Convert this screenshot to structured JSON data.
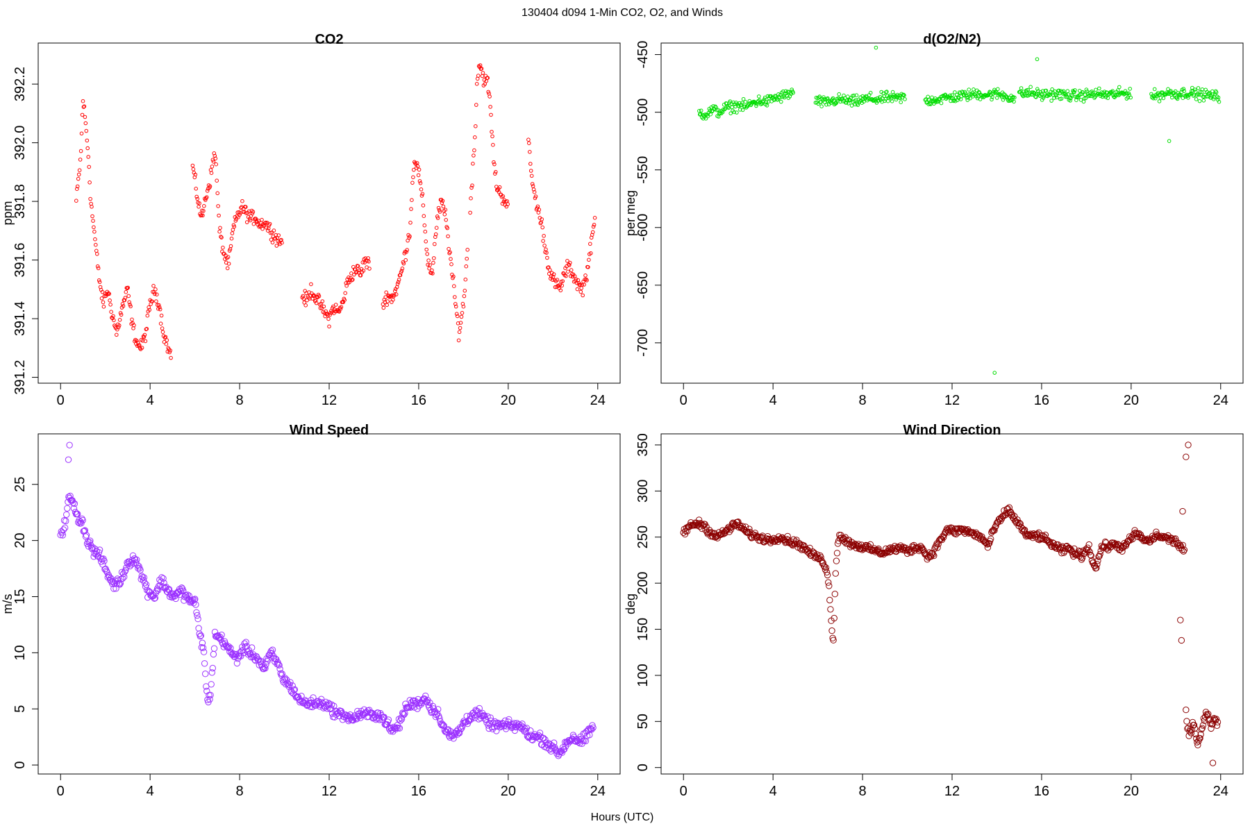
{
  "figure": {
    "suptitle": "130404   d094   1-Min CO2, O2, and Winds",
    "xlabel": "Hours (UTC)"
  },
  "chart_data": [
    {
      "type": "scatter",
      "title": "CO2",
      "xlabel": "",
      "ylabel": "ppm",
      "xlim": [
        -1,
        25
      ],
      "ylim": [
        391.18,
        392.34
      ],
      "xticks": [
        0,
        4,
        8,
        12,
        16,
        20,
        24
      ],
      "yticks": [
        391.2,
        391.4,
        391.6,
        391.8,
        392.0,
        392.2
      ],
      "ytick_labels": [
        "391.2",
        "391.4",
        "391.6",
        "391.8",
        "392.0",
        "392.2"
      ],
      "color": "#ff0000",
      "grid": false,
      "segments": [
        {
          "x": [
            0.7,
            0.9,
            1.0,
            1.1,
            1.25,
            1.35,
            1.5,
            1.7,
            1.9,
            2.1,
            2.3,
            2.5,
            2.8,
            3.0,
            3.2,
            3.4,
            3.6,
            3.8,
            4.0,
            4.2,
            4.4,
            4.6,
            4.8,
            4.95
          ],
          "y": [
            391.8,
            391.95,
            392.15,
            392.08,
            391.95,
            391.8,
            391.7,
            391.55,
            391.45,
            391.5,
            391.42,
            391.35,
            391.45,
            391.5,
            391.38,
            391.32,
            391.3,
            391.35,
            391.45,
            391.5,
            391.45,
            391.35,
            391.3,
            391.27
          ]
        },
        {
          "x": [
            5.9,
            6.1,
            6.3,
            6.5,
            6.7,
            6.9,
            7.1,
            7.3,
            7.5,
            7.7,
            7.9,
            8.1,
            8.3,
            8.5,
            8.7,
            8.9,
            9.1,
            9.3,
            9.5,
            9.7,
            9.9
          ],
          "y": [
            391.92,
            391.82,
            391.74,
            391.82,
            391.88,
            391.98,
            391.7,
            391.62,
            391.58,
            391.7,
            391.75,
            391.78,
            391.76,
            391.74,
            391.75,
            391.72,
            391.73,
            391.71,
            391.69,
            391.67,
            391.66
          ]
        },
        {
          "x": [
            10.8,
            11.0,
            11.2,
            11.4,
            11.6,
            11.8,
            12.0,
            12.2,
            12.4,
            12.6,
            12.8,
            13.0,
            13.2,
            13.4,
            13.6,
            13.8
          ],
          "y": [
            391.48,
            391.46,
            391.5,
            391.47,
            391.45,
            391.42,
            391.4,
            391.44,
            391.42,
            391.45,
            391.52,
            391.55,
            391.57,
            391.55,
            391.6,
            391.58
          ]
        },
        {
          "x": [
            14.4,
            14.6,
            14.8,
            15.0,
            15.2,
            15.4,
            15.6,
            15.8,
            16.0,
            16.2,
            16.4,
            16.6,
            16.8,
            17.0,
            17.2,
            17.4,
            17.6,
            17.8,
            18.0,
            18.2
          ],
          "y": [
            391.45,
            391.48,
            391.47,
            391.5,
            391.55,
            391.62,
            391.7,
            391.95,
            391.9,
            391.78,
            391.6,
            391.55,
            391.72,
            391.8,
            391.75,
            391.62,
            391.48,
            391.35,
            391.45,
            391.65
          ]
        },
        {
          "x": [
            18.3,
            18.5,
            18.6,
            18.7,
            18.8,
            18.9,
            19.0,
            19.1,
            19.2,
            19.3,
            19.4,
            19.5,
            19.7,
            19.9,
            20.0
          ],
          "y": [
            391.78,
            392.0,
            392.2,
            392.27,
            392.25,
            392.22,
            392.21,
            392.2,
            392.12,
            392.0,
            391.9,
            391.85,
            391.82,
            391.8,
            391.78
          ]
        },
        {
          "x": [
            20.9,
            21.1,
            21.3,
            21.5,
            21.7,
            21.9,
            22.1,
            22.3,
            22.5,
            22.7,
            22.9,
            23.1,
            23.3,
            23.5,
            23.7,
            23.9
          ],
          "y": [
            392.0,
            391.85,
            391.78,
            391.72,
            391.62,
            391.55,
            391.52,
            391.5,
            391.55,
            391.58,
            391.55,
            391.52,
            391.5,
            391.55,
            391.65,
            391.75
          ]
        }
      ]
    },
    {
      "type": "scatter",
      "title": "d(O2/N2)",
      "xlabel": "",
      "ylabel": "per meg",
      "xlim": [
        -1,
        25
      ],
      "ylim": [
        -735,
        -440
      ],
      "xticks": [
        0,
        4,
        8,
        12,
        16,
        20,
        24
      ],
      "yticks": [
        -700,
        -650,
        -600,
        -550,
        -500,
        -450
      ],
      "ytick_labels": [
        "-700",
        "-650",
        "-600",
        "-550",
        "-500",
        "-450"
      ],
      "color": "#00dd00",
      "grid": false,
      "segments": [
        {
          "x": [
            0.7,
            1.0,
            1.3,
            1.6,
            1.9,
            2.2,
            2.5,
            2.8,
            3.1,
            3.4,
            3.7,
            4.0,
            4.3,
            4.6,
            4.9
          ],
          "y": [
            -500,
            -502,
            -498,
            -500,
            -496,
            -495,
            -494,
            -495,
            -492,
            -490,
            -491,
            -488,
            -487,
            -485,
            -483
          ]
        },
        {
          "x": [
            5.9,
            6.3,
            6.7,
            7.1,
            7.5,
            7.9,
            8.3,
            8.7,
            9.1,
            9.5,
            9.9
          ],
          "y": [
            -490,
            -492,
            -490,
            -489,
            -491,
            -490,
            -488,
            -489,
            -487,
            -488,
            -487
          ]
        },
        {
          "x": [
            10.8,
            11.2,
            11.6,
            12.0,
            12.4,
            12.8,
            13.2,
            13.6,
            14.0,
            14.4,
            14.8
          ],
          "y": [
            -490,
            -489,
            -488,
            -487,
            -486,
            -485,
            -484,
            -485,
            -484,
            -486,
            -488
          ]
        },
        {
          "x": [
            15.0,
            15.5,
            16.0,
            16.5,
            17.0,
            17.5,
            18.0,
            18.5,
            19.0,
            19.5,
            20.0
          ],
          "y": [
            -484,
            -483,
            -485,
            -484,
            -485,
            -486,
            -485,
            -484,
            -485,
            -484,
            -483
          ]
        },
        {
          "x": [
            20.9,
            21.3,
            21.7,
            22.1,
            22.5,
            22.9,
            23.3,
            23.7,
            23.95
          ],
          "y": [
            -486,
            -485,
            -483,
            -484,
            -483,
            -484,
            -485,
            -486,
            -487
          ]
        }
      ],
      "outliers": [
        {
          "x": 13.9,
          "y": -726
        },
        {
          "x": 8.6,
          "y": -444
        },
        {
          "x": 15.8,
          "y": -454
        },
        {
          "x": 21.7,
          "y": -525
        }
      ]
    },
    {
      "type": "scatter",
      "title": "Wind Speed",
      "xlabel": "",
      "ylabel": "m/s",
      "xlim": [
        -1,
        25
      ],
      "ylim": [
        -0.8,
        29.5
      ],
      "xticks": [
        0,
        4,
        8,
        12,
        16,
        20,
        24
      ],
      "yticks": [
        0,
        5,
        10,
        15,
        20,
        25
      ],
      "ytick_labels": [
        "0",
        "5",
        "10",
        "15",
        "20",
        "25"
      ],
      "color": "#9b30ff",
      "grid": false,
      "segments": [
        {
          "x": [
            0.0,
            0.2,
            0.4,
            0.6,
            0.8,
            1.0,
            1.2,
            1.5,
            1.8,
            2.1,
            2.4,
            2.7,
            3.0,
            3.3,
            3.6,
            3.9,
            4.2,
            4.5,
            4.8,
            5.1,
            5.4,
            5.7,
            6.0,
            6.2,
            6.4,
            6.5,
            6.6,
            6.7,
            6.8,
            6.9,
            7.0,
            7.3,
            7.6,
            7.9,
            8.2,
            8.5,
            8.8,
            9.1,
            9.4,
            9.7,
            10.0,
            10.3,
            10.6,
            10.9,
            11.2,
            11.5,
            11.8,
            12.1,
            12.4,
            12.7,
            13.0,
            13.3,
            13.6,
            13.9,
            14.2,
            14.5,
            14.8,
            15.1,
            15.4,
            15.7,
            16.0,
            16.3,
            16.6,
            16.9,
            17.2,
            17.5,
            17.8,
            18.1,
            18.4,
            18.7,
            19.0,
            19.3,
            19.6,
            19.9,
            20.2,
            20.5,
            20.8,
            21.1,
            21.4,
            21.7,
            22.0,
            22.3,
            22.6,
            22.9,
            23.2,
            23.5,
            23.8
          ],
          "y": [
            20.5,
            21.5,
            24.0,
            23.0,
            22.0,
            21.5,
            20.0,
            19.0,
            18.5,
            17.0,
            16.0,
            16.5,
            18.0,
            18.5,
            17.0,
            15.5,
            15.0,
            16.5,
            15.5,
            15.0,
            15.5,
            14.8,
            14.5,
            12.0,
            10.0,
            7.0,
            5.5,
            6.5,
            9.0,
            11.5,
            11.5,
            11.0,
            10.0,
            9.5,
            10.5,
            10.0,
            9.5,
            8.5,
            10.0,
            9.0,
            7.5,
            7.0,
            6.0,
            5.5,
            5.5,
            5.5,
            5.5,
            5.0,
            4.5,
            4.5,
            4.0,
            4.5,
            4.5,
            4.5,
            4.5,
            4.0,
            3.0,
            3.5,
            5.0,
            5.5,
            5.5,
            6.0,
            5.0,
            4.5,
            3.0,
            2.5,
            3.0,
            4.0,
            4.5,
            4.5,
            4.0,
            3.5,
            3.5,
            3.5,
            3.5,
            3.5,
            3.0,
            2.5,
            2.5,
            2.0,
            1.5,
            1.0,
            2.0,
            2.5,
            2.0,
            2.5,
            3.5
          ]
        }
      ],
      "outliers": [
        {
          "x": 0.4,
          "y": 28.5
        },
        {
          "x": 0.35,
          "y": 27.2
        }
      ]
    },
    {
      "type": "scatter",
      "title": "Wind Direction",
      "xlabel": "",
      "ylabel": "deg",
      "xlim": [
        -1,
        25
      ],
      "ylim": [
        -7,
        362
      ],
      "xticks": [
        0,
        4,
        8,
        12,
        16,
        20,
        24
      ],
      "yticks": [
        0,
        50,
        100,
        150,
        200,
        250,
        300,
        350
      ],
      "ytick_labels": [
        "0",
        "50",
        "100",
        "150",
        "200",
        "250",
        "300",
        "350"
      ],
      "color": "#8b0000",
      "grid": false,
      "segments": [
        {
          "x": [
            0.0,
            0.3,
            0.6,
            0.9,
            1.2,
            1.5,
            1.8,
            2.1,
            2.4,
            2.7,
            3.0,
            3.3,
            3.6,
            3.9,
            4.2,
            4.5,
            4.8,
            5.1,
            5.4,
            5.7,
            6.0,
            6.2,
            6.4,
            6.5,
            6.55,
            6.6,
            6.65,
            6.7,
            6.8,
            6.9,
            7.0,
            7.3,
            7.6,
            7.9,
            8.2,
            8.5,
            8.8,
            9.1,
            9.4,
            9.7,
            10.0,
            10.3,
            10.6,
            10.9,
            11.2,
            11.5,
            11.8,
            12.1,
            12.4,
            12.7,
            13.0,
            13.3,
            13.6,
            13.9,
            14.2,
            14.5,
            14.8,
            15.1,
            15.4,
            15.7,
            16.0,
            16.3,
            16.6,
            16.9,
            17.2,
            17.5,
            17.8,
            18.1,
            18.4,
            18.7,
            19.0,
            19.3,
            19.6,
            19.9,
            20.2,
            20.5,
            20.8,
            21.1,
            21.4,
            21.7,
            22.0,
            22.2,
            22.4
          ],
          "y": [
            255,
            262,
            265,
            263,
            255,
            250,
            255,
            260,
            265,
            258,
            253,
            250,
            248,
            247,
            250,
            248,
            245,
            243,
            238,
            232,
            228,
            225,
            215,
            195,
            175,
            160,
            145,
            140,
            215,
            245,
            252,
            245,
            242,
            240,
            238,
            236,
            233,
            235,
            237,
            238,
            235,
            238,
            240,
            228,
            235,
            248,
            258,
            256,
            258,
            256,
            253,
            250,
            240,
            260,
            270,
            280,
            270,
            260,
            250,
            252,
            250,
            245,
            240,
            235,
            238,
            232,
            230,
            240,
            215,
            240,
            240,
            242,
            238,
            245,
            255,
            248,
            245,
            252,
            250,
            248,
            245,
            240,
            235
          ]
        },
        {
          "x": [
            22.45,
            22.5,
            22.6,
            22.7,
            22.8,
            22.9,
            23.0,
            23.1,
            23.2,
            23.3,
            23.4,
            23.5,
            23.6,
            23.7,
            23.8,
            23.9
          ],
          "y": [
            60,
            45,
            35,
            40,
            50,
            30,
            25,
            35,
            50,
            55,
            60,
            52,
            45,
            55,
            50,
            45
          ]
        }
      ],
      "outliers": [
        {
          "x": 22.55,
          "y": 350
        },
        {
          "x": 22.45,
          "y": 337
        },
        {
          "x": 22.3,
          "y": 278
        },
        {
          "x": 22.2,
          "y": 160
        },
        {
          "x": 22.25,
          "y": 138
        },
        {
          "x": 23.65,
          "y": 5
        }
      ]
    }
  ]
}
